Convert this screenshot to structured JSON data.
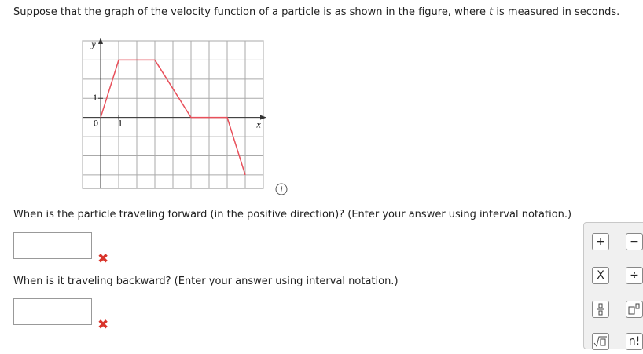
{
  "question": {
    "before": "Suppose that the graph of the velocity function of a particle is as shown in the figure, where ",
    "variable": "t",
    "after": " is measured in seconds."
  },
  "chart_data": {
    "type": "line",
    "x_label": "x",
    "y_label": "y",
    "x": [
      0,
      1,
      3,
      5,
      7,
      8
    ],
    "values": [
      0,
      3,
      3,
      0,
      0,
      -3
    ],
    "color": "#e8505b",
    "xlim": [
      -1,
      9
    ],
    "ylim": [
      -3.7,
      4
    ],
    "xticks": [
      0,
      1
    ],
    "yticks": [
      1
    ],
    "grid_x": [
      -1,
      0,
      1,
      2,
      3,
      4,
      5,
      6,
      7,
      8,
      9
    ],
    "grid_y": [
      -3,
      -2,
      -1,
      0,
      1,
      2,
      3,
      4
    ],
    "grid": true
  },
  "prompts": [
    "When is the particle traveling forward (in the positive direction)? (Enter your answer using interval notation.)",
    "When is it traveling backward? (Enter your answer using interval notation.)"
  ],
  "toolbar": [
    "+",
    "−",
    "X",
    "÷",
    "n!"
  ]
}
